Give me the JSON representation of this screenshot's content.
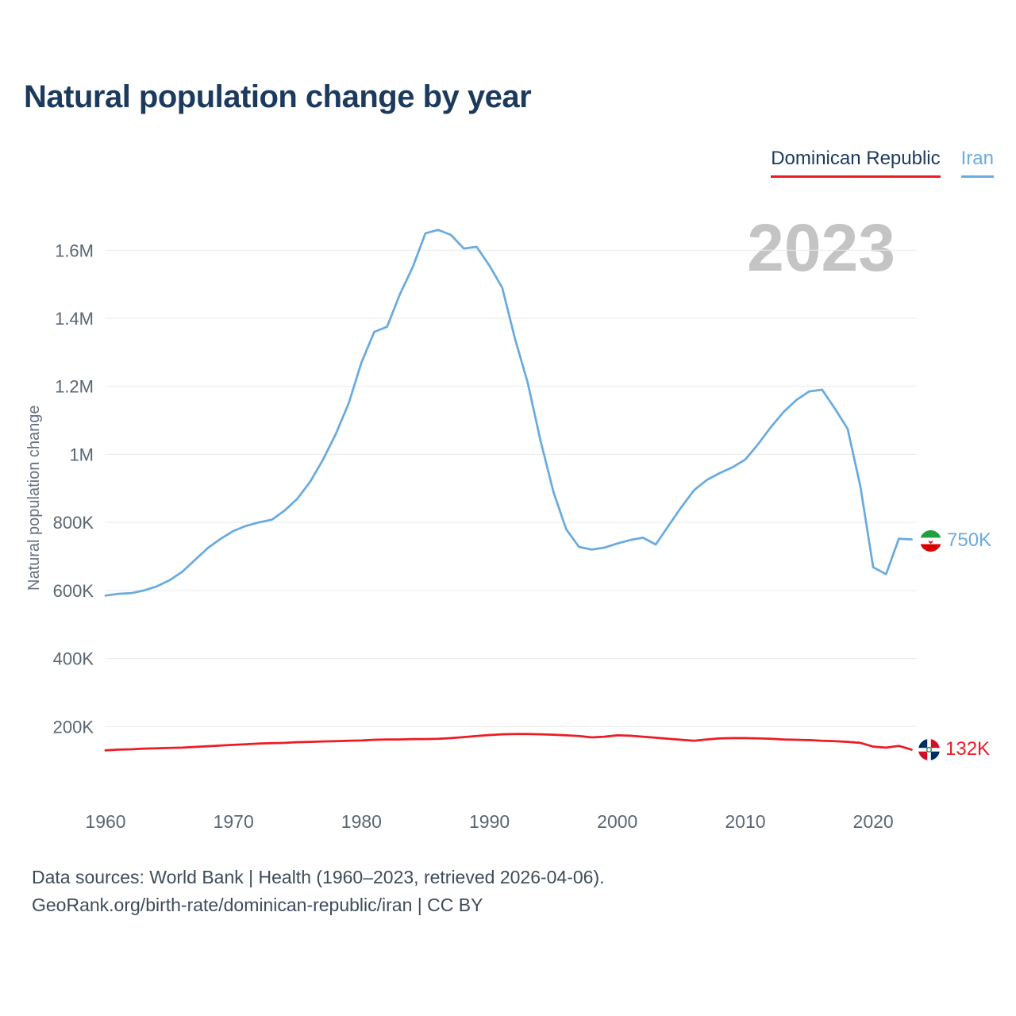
{
  "title": "Natural population change by year",
  "watermark_year": "2023",
  "y_axis_label": "Natural population change",
  "legend": [
    {
      "label": "Dominican Republic",
      "color": "#ed1b24"
    },
    {
      "label": "Iran",
      "color": "#6aabde"
    }
  ],
  "end_labels": [
    {
      "series": "Iran",
      "label": "750K",
      "color": "#6aabde"
    },
    {
      "series": "Dominican Republic",
      "label": "132K",
      "color": "#ed1b24"
    }
  ],
  "footer": {
    "line1": "Data sources: World Bank | Health (1960–2023, retrieved 2026-04-06).",
    "line2": "GeoRank.org/birth-rate/dominican-republic/iran | CC BY"
  },
  "chart_data": {
    "type": "line",
    "title": "Natural population change by year",
    "xlabel": "",
    "ylabel": "Natural population change",
    "xlim": [
      1960,
      2023
    ],
    "ylim": [
      0,
      1700000
    ],
    "grid": true,
    "legend_position": "top-right",
    "x": [
      1960,
      1961,
      1962,
      1963,
      1964,
      1965,
      1966,
      1967,
      1968,
      1969,
      1970,
      1971,
      1972,
      1973,
      1974,
      1975,
      1976,
      1977,
      1978,
      1979,
      1980,
      1981,
      1982,
      1983,
      1984,
      1985,
      1986,
      1987,
      1988,
      1989,
      1990,
      1991,
      1992,
      1993,
      1994,
      1995,
      1996,
      1997,
      1998,
      1999,
      2000,
      2001,
      2002,
      2003,
      2004,
      2005,
      2006,
      2007,
      2008,
      2009,
      2010,
      2011,
      2012,
      2013,
      2014,
      2015,
      2016,
      2017,
      2018,
      2019,
      2020,
      2021,
      2022,
      2023
    ],
    "yticks": [
      {
        "value": 200000,
        "label": "200K"
      },
      {
        "value": 400000,
        "label": "400K"
      },
      {
        "value": 600000,
        "label": "600K"
      },
      {
        "value": 800000,
        "label": "800K"
      },
      {
        "value": 1000000,
        "label": "1M"
      },
      {
        "value": 1200000,
        "label": "1.2M"
      },
      {
        "value": 1400000,
        "label": "1.4M"
      },
      {
        "value": 1600000,
        "label": "1.6M"
      }
    ],
    "xticks": [
      {
        "value": 1960,
        "label": "1960"
      },
      {
        "value": 1970,
        "label": "1970"
      },
      {
        "value": 1980,
        "label": "1980"
      },
      {
        "value": 1990,
        "label": "1990"
      },
      {
        "value": 2000,
        "label": "2000"
      },
      {
        "value": 2010,
        "label": "2010"
      },
      {
        "value": 2020,
        "label": "2020"
      }
    ],
    "series": [
      {
        "name": "Dominican Republic",
        "color": "#ed1b24",
        "values": [
          130000,
          132000,
          133000,
          135000,
          136000,
          137000,
          138000,
          140000,
          142000,
          144000,
          146000,
          148000,
          150000,
          151000,
          152000,
          154000,
          155000,
          156000,
          157000,
          158000,
          159000,
          161000,
          162000,
          162000,
          163000,
          163000,
          164000,
          166000,
          169000,
          172000,
          175000,
          177000,
          178000,
          178000,
          177000,
          176000,
          174000,
          172000,
          168000,
          170000,
          174000,
          173000,
          170000,
          167000,
          164000,
          161000,
          158000,
          162000,
          165000,
          166000,
          166000,
          165000,
          164000,
          162000,
          161000,
          160000,
          158000,
          157000,
          155000,
          152000,
          141000,
          138000,
          143000,
          132000
        ]
      },
      {
        "name": "Iran",
        "color": "#6aabde",
        "values": [
          585000,
          590000,
          592000,
          600000,
          612000,
          630000,
          655000,
          690000,
          725000,
          752000,
          775000,
          790000,
          800000,
          808000,
          835000,
          870000,
          920000,
          985000,
          1060000,
          1150000,
          1270000,
          1360000,
          1375000,
          1470000,
          1550000,
          1650000,
          1660000,
          1645000,
          1605000,
          1610000,
          1555000,
          1490000,
          1340000,
          1210000,
          1040000,
          890000,
          780000,
          728000,
          720000,
          726000,
          738000,
          748000,
          755000,
          735000,
          790000,
          845000,
          895000,
          925000,
          945000,
          962000,
          985000,
          1030000,
          1080000,
          1125000,
          1160000,
          1185000,
          1190000,
          1135000,
          1075000,
          905000,
          668000,
          648000,
          752000,
          750000
        ]
      }
    ]
  }
}
